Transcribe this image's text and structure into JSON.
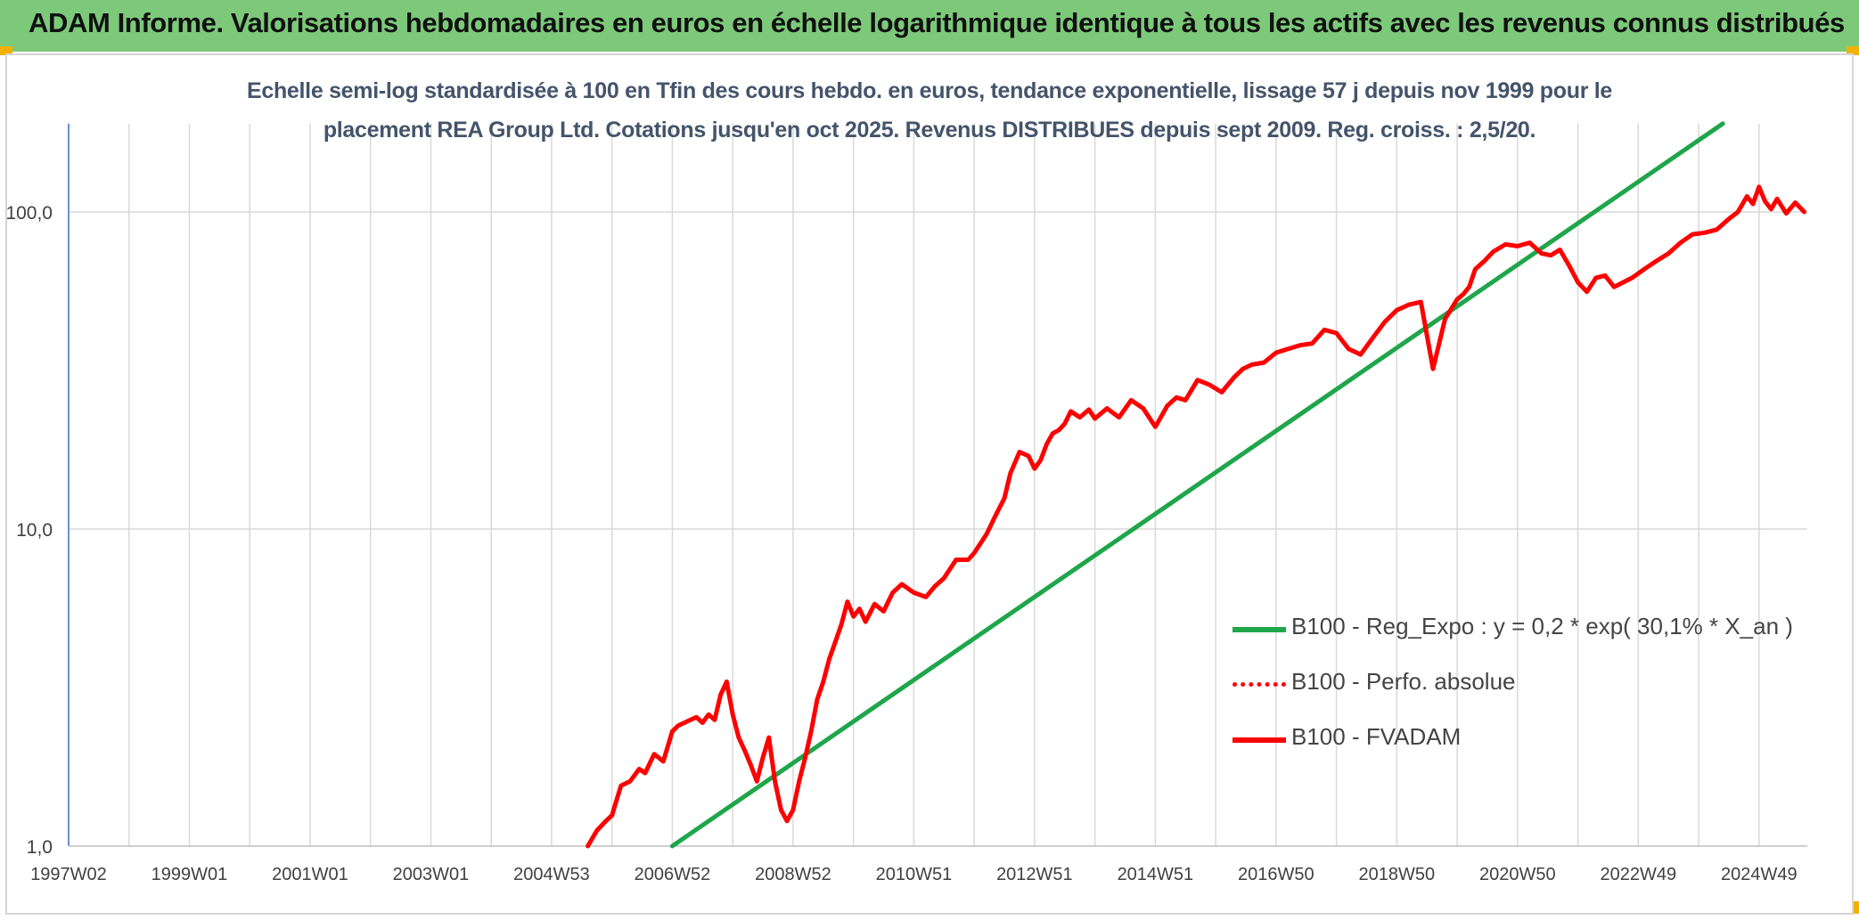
{
  "banner": {
    "title": "ADAM Informe. Valorisations hebdomadaires en euros en échelle logarithmique identique à tous les actifs avec les revenus connus distribués"
  },
  "chart_data": {
    "type": "line",
    "title_lines": [
      "Echelle semi-log standardisée à 100 en Tfin des cours hebdo. en euros, tendance exponentielle, lissage 57 j depuis nov 1999 pour le",
      "placement REA Group Ltd. Cotations jusqu'en oct 2025. Revenus DISTRIBUES depuis sept 2009. Reg. croiss. : 2,5/20."
    ],
    "y_scale": "log",
    "ylim": [
      1,
      190
    ],
    "xlim": [
      1997.0,
      2025.8
    ],
    "y_ticks": [
      {
        "value": 1,
        "label": "1,0"
      },
      {
        "value": 10,
        "label": "10,0"
      },
      {
        "value": 100,
        "label": "100,0"
      }
    ],
    "x_ticks": [
      {
        "x": 1997.0,
        "label": "1997W02"
      },
      {
        "x": 1999.0,
        "label": "1999W01"
      },
      {
        "x": 2001.0,
        "label": "2001W01"
      },
      {
        "x": 2003.0,
        "label": "2003W01"
      },
      {
        "x": 2005.0,
        "label": "2004W53"
      },
      {
        "x": 2007.0,
        "label": "2006W52"
      },
      {
        "x": 2009.0,
        "label": "2008W52"
      },
      {
        "x": 2011.0,
        "label": "2010W51"
      },
      {
        "x": 2013.0,
        "label": "2012W51"
      },
      {
        "x": 2015.0,
        "label": "2014W51"
      },
      {
        "x": 2017.0,
        "label": "2016W50"
      },
      {
        "x": 2019.0,
        "label": "2018W50"
      },
      {
        "x": 2021.0,
        "label": "2020W50"
      },
      {
        "x": 2023.0,
        "label": "2022W49"
      },
      {
        "x": 2025.0,
        "label": "2024W49"
      }
    ],
    "grid": "vertical-and-horizontal",
    "legend_position": "bottom-right",
    "series": [
      {
        "name": "B100 - Reg_Expo : y = 0,2 * exp( 30,1% *  X_an )",
        "color": "#1fa64a",
        "style": "solid",
        "x": [
          2007.0,
          2024.4
        ],
        "values": [
          1.0,
          190.0
        ]
      },
      {
        "name": "B100 - Perfo. absolue",
        "color": "#ff0000",
        "style": "dotted",
        "x": [],
        "values": []
      },
      {
        "name": "B100 - FVADAM",
        "color": "#ff0000",
        "style": "solid",
        "x": [
          2005.6,
          2005.75,
          2005.9,
          2006.0,
          2006.15,
          2006.3,
          2006.45,
          2006.55,
          2006.7,
          2006.85,
          2007.0,
          2007.1,
          2007.2,
          2007.3,
          2007.4,
          2007.5,
          2007.6,
          2007.7,
          2007.8,
          2007.9,
          2008.0,
          2008.1,
          2008.2,
          2008.3,
          2008.4,
          2008.5,
          2008.6,
          2008.7,
          2008.8,
          2008.9,
          2009.0,
          2009.1,
          2009.2,
          2009.3,
          2009.4,
          2009.5,
          2009.6,
          2009.7,
          2009.8,
          2009.9,
          2010.0,
          2010.1,
          2010.2,
          2010.35,
          2010.5,
          2010.65,
          2010.8,
          2011.0,
          2011.2,
          2011.35,
          2011.5,
          2011.7,
          2011.9,
          2012.0,
          2012.2,
          2012.35,
          2012.5,
          2012.6,
          2012.75,
          2012.9,
          2013.0,
          2013.1,
          2013.2,
          2013.3,
          2013.4,
          2013.5,
          2013.6,
          2013.75,
          2013.9,
          2014.0,
          2014.2,
          2014.4,
          2014.6,
          2014.8,
          2015.0,
          2015.2,
          2015.35,
          2015.5,
          2015.7,
          2015.9,
          2016.1,
          2016.3,
          2016.45,
          2016.6,
          2016.8,
          2017.0,
          2017.2,
          2017.4,
          2017.6,
          2017.8,
          2018.0,
          2018.2,
          2018.4,
          2018.6,
          2018.8,
          2019.0,
          2019.2,
          2019.4,
          2019.6,
          2019.8,
          2020.0,
          2020.1,
          2020.2,
          2020.3,
          2020.45,
          2020.6,
          2020.8,
          2021.0,
          2021.2,
          2021.4,
          2021.55,
          2021.7,
          2021.85,
          2022.0,
          2022.15,
          2022.3,
          2022.45,
          2022.6,
          2022.75,
          2022.9,
          2023.1,
          2023.3,
          2023.5,
          2023.7,
          2023.9,
          2024.1,
          2024.3,
          2024.5,
          2024.65,
          2024.8,
          2024.9,
          2025.0,
          2025.1,
          2025.2,
          2025.3,
          2025.45,
          2025.6,
          2025.75
        ],
        "values": [
          1.0,
          1.12,
          1.2,
          1.25,
          1.55,
          1.6,
          1.75,
          1.7,
          1.95,
          1.85,
          2.3,
          2.4,
          2.45,
          2.5,
          2.55,
          2.45,
          2.6,
          2.5,
          3.0,
          3.3,
          2.6,
          2.2,
          2.0,
          1.8,
          1.6,
          1.9,
          2.2,
          1.6,
          1.3,
          1.2,
          1.3,
          1.6,
          1.9,
          2.3,
          2.9,
          3.3,
          3.9,
          4.4,
          5.0,
          5.9,
          5.3,
          5.6,
          5.1,
          5.8,
          5.5,
          6.3,
          6.7,
          6.3,
          6.1,
          6.6,
          7.0,
          8.0,
          8.0,
          8.4,
          9.6,
          11.0,
          12.5,
          15.0,
          17.5,
          17.0,
          15.5,
          16.5,
          18.5,
          20.0,
          20.5,
          21.5,
          23.5,
          22.5,
          23.8,
          22.3,
          24.0,
          22.5,
          25.5,
          24.0,
          21.0,
          24.5,
          26.0,
          25.5,
          29.5,
          28.5,
          27.0,
          30.0,
          32.0,
          33.0,
          33.5,
          36.0,
          37.0,
          38.0,
          38.5,
          42.5,
          41.5,
          37.0,
          35.5,
          40.0,
          45.0,
          49.0,
          51.0,
          52.0,
          32.0,
          46.0,
          53.0,
          55.0,
          58.0,
          66.0,
          70.0,
          75.0,
          79.0,
          78.0,
          80.0,
          74.0,
          73.0,
          76.0,
          68.0,
          60.0,
          56.0,
          62.0,
          63.0,
          58.0,
          60.0,
          62.0,
          66.0,
          70.0,
          74.0,
          80.0,
          85.0,
          86.0,
          88.0,
          95.0,
          100.0,
          112.0,
          106.0,
          120.0,
          108.0,
          102.0,
          110.0,
          99.0,
          107.0,
          100.0
        ]
      }
    ]
  }
}
